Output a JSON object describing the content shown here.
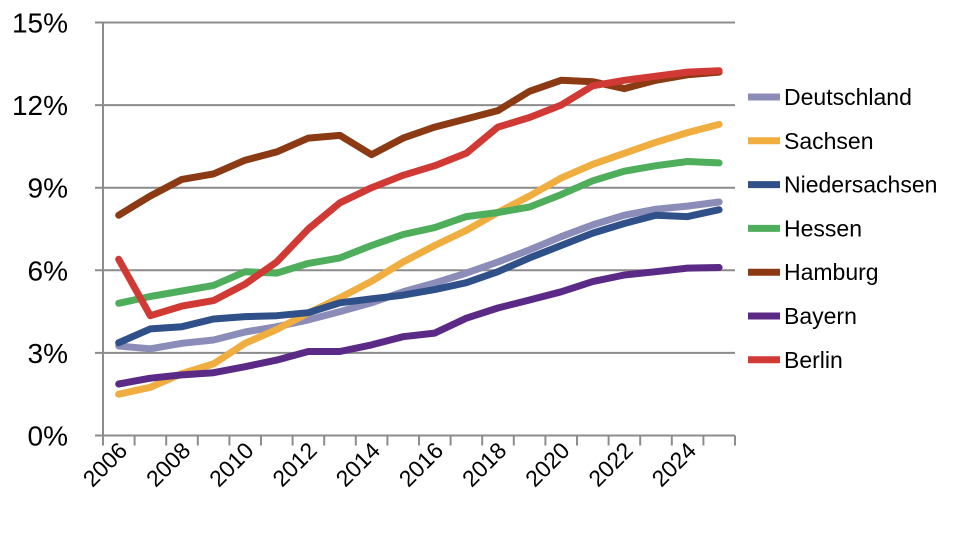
{
  "chart_data": {
    "type": "line",
    "title": "",
    "xlabel": "",
    "ylabel": "",
    "x": [
      2006,
      2007,
      2008,
      2009,
      2010,
      2011,
      2012,
      2013,
      2014,
      2015,
      2016,
      2017,
      2018,
      2019,
      2020,
      2021,
      2022,
      2023,
      2024,
      2025
    ],
    "x_tick_labels": [
      "2006",
      "2008",
      "2010",
      "2012",
      "2014",
      "2016",
      "2018",
      "2020",
      "2022",
      "2024"
    ],
    "y_tick_labels": [
      "0%",
      "3%",
      "6%",
      "9%",
      "12%",
      "15%"
    ],
    "ylim": [
      0,
      15
    ],
    "y_unit": "%",
    "grid": "horizontal",
    "legend_position": "right",
    "series": [
      {
        "name": "Deutschland",
        "color": "#8B8CB8",
        "values": [
          3.25,
          3.15,
          3.35,
          3.47,
          3.76,
          3.95,
          4.2,
          4.5,
          4.82,
          5.22,
          5.54,
          5.9,
          6.3,
          6.74,
          7.22,
          7.65,
          8.0,
          8.22,
          8.33,
          8.48
        ]
      },
      {
        "name": "Sachsen",
        "color": "#F0AD40",
        "values": [
          1.5,
          1.75,
          2.25,
          2.6,
          3.35,
          3.85,
          4.45,
          5.0,
          5.6,
          6.3,
          6.9,
          7.45,
          8.1,
          8.7,
          9.35,
          9.85,
          10.25,
          10.65,
          11.0,
          11.3
        ]
      },
      {
        "name": "Niedersachsen",
        "color": "#2F5089",
        "values": [
          3.37,
          3.87,
          3.95,
          4.23,
          4.32,
          4.35,
          4.46,
          4.82,
          4.96,
          5.1,
          5.3,
          5.55,
          5.95,
          6.45,
          6.9,
          7.35,
          7.7,
          8.0,
          7.95,
          8.2
        ]
      },
      {
        "name": "Hessen",
        "color": "#4FAE5B",
        "values": [
          4.8,
          5.05,
          5.25,
          5.45,
          5.95,
          5.9,
          6.25,
          6.45,
          6.9,
          7.3,
          7.55,
          7.95,
          8.1,
          8.3,
          8.75,
          9.25,
          9.6,
          9.8,
          9.95,
          9.9
        ]
      },
      {
        "name": "Hamburg",
        "color": "#8B3A14",
        "values": [
          8.0,
          8.7,
          9.3,
          9.5,
          10.0,
          10.3,
          10.8,
          10.9,
          10.2,
          10.8,
          11.2,
          11.5,
          11.8,
          12.5,
          12.9,
          12.85,
          12.6,
          12.9,
          13.1,
          13.2
        ]
      },
      {
        "name": "Bayern",
        "color": "#5B2A86",
        "values": [
          1.87,
          2.08,
          2.2,
          2.28,
          2.5,
          2.74,
          3.05,
          3.05,
          3.29,
          3.59,
          3.72,
          4.26,
          4.63,
          4.92,
          5.22,
          5.59,
          5.83,
          5.95,
          6.08,
          6.1
        ]
      },
      {
        "name": "Berlin",
        "color": "#D13A34",
        "values": [
          6.4,
          4.35,
          4.7,
          4.9,
          5.5,
          6.3,
          7.5,
          8.45,
          9.0,
          9.45,
          9.8,
          10.25,
          11.2,
          11.55,
          12.0,
          12.7,
          12.9,
          13.05,
          13.2,
          13.25
        ]
      }
    ]
  }
}
